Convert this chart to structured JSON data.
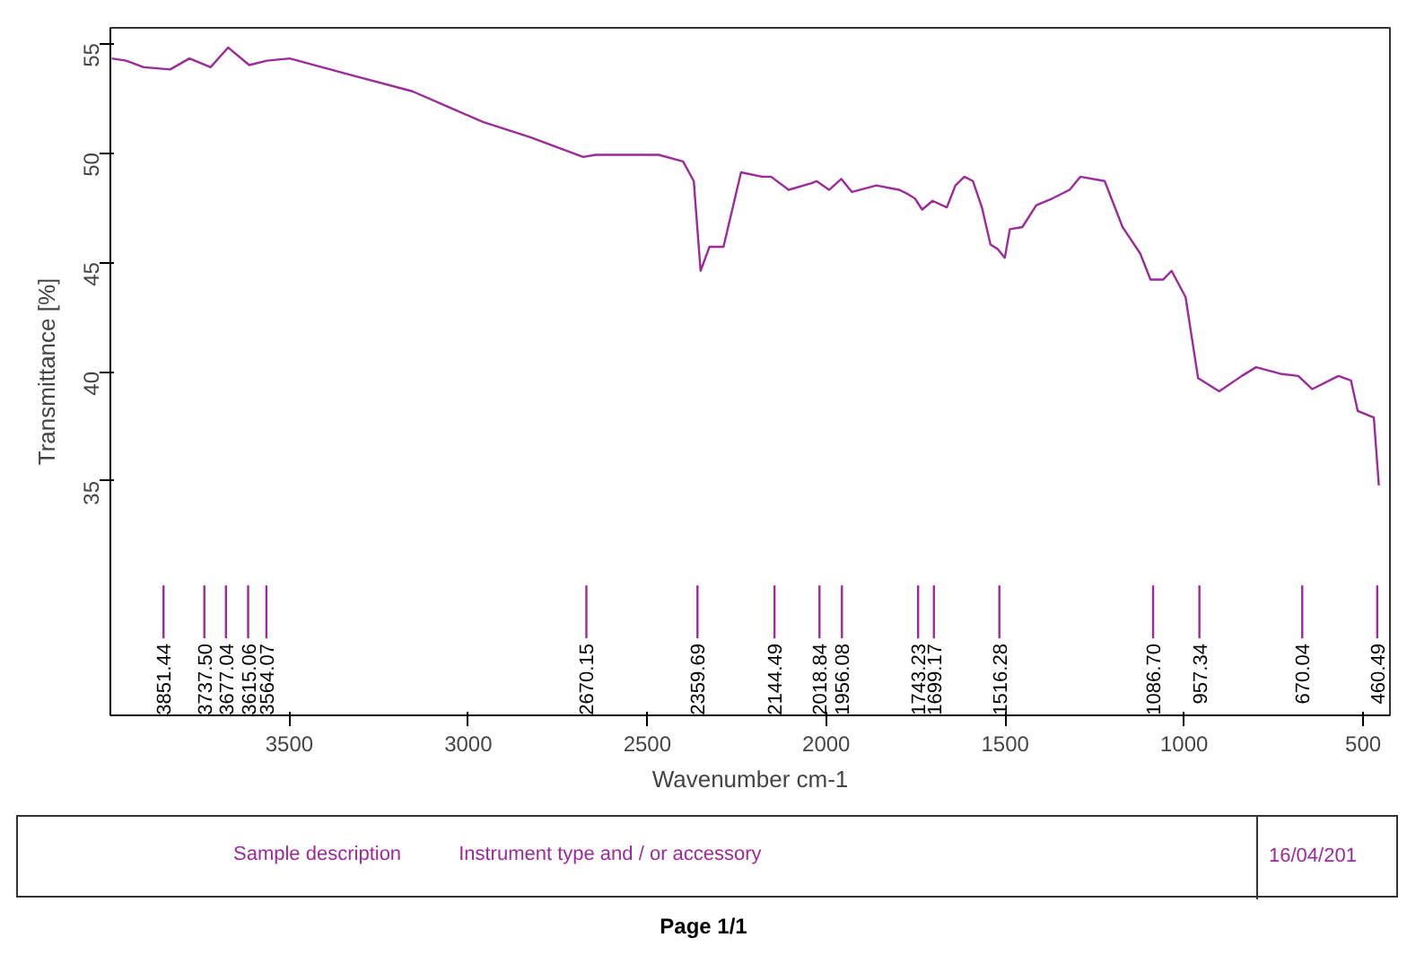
{
  "chart_data": {
    "type": "line",
    "xlabel": "Wavenumber cm-1",
    "ylabel": "Transmittance [%]",
    "xlim": [
      4000,
      425
    ],
    "ylim": [
      24.3,
      55.7
    ],
    "xticks": [
      3500,
      3000,
      2500,
      2000,
      1500,
      1000,
      500
    ],
    "yticks": [
      35,
      40,
      45,
      50,
      55
    ],
    "grid": false,
    "marker": "none",
    "line_style": "solid",
    "series": [
      {
        "color": "#9b2a9b",
        "x": [
          3996,
          3956,
          3907,
          3833,
          3779,
          3720,
          3671,
          3612,
          3563,
          3499,
          3318,
          3156,
          2959,
          2827,
          2679,
          2645,
          2468,
          2400,
          2370,
          2351,
          2326,
          2287,
          2238,
          2179,
          2154,
          2105,
          2041,
          2027,
          1992,
          1958,
          1928,
          1860,
          1796,
          1771,
          1752,
          1732,
          1703,
          1663,
          1639,
          1614,
          1590,
          1565,
          1541,
          1521,
          1501,
          1487,
          1452,
          1413,
          1369,
          1320,
          1290,
          1222,
          1172,
          1123,
          1094,
          1059,
          1035,
          996,
          961,
          902,
          839,
          799,
          731,
          681,
          642,
          569,
          534,
          515,
          470,
          456
        ],
        "values": [
          54.3,
          54.2,
          53.9,
          53.8,
          54.3,
          53.9,
          54.8,
          54.0,
          54.2,
          54.3,
          53.5,
          52.8,
          51.4,
          50.7,
          49.8,
          49.9,
          49.9,
          49.6,
          48.7,
          44.6,
          45.7,
          45.7,
          49.1,
          48.9,
          48.9,
          48.3,
          48.6,
          48.7,
          48.3,
          48.8,
          48.2,
          48.5,
          48.3,
          48.1,
          47.9,
          47.4,
          47.8,
          47.5,
          48.5,
          48.9,
          48.7,
          47.5,
          45.8,
          45.6,
          45.2,
          46.5,
          46.6,
          47.6,
          47.9,
          48.3,
          48.9,
          48.7,
          46.6,
          45.4,
          44.2,
          44.2,
          44.6,
          43.4,
          39.7,
          39.1,
          39.8,
          40.2,
          39.9,
          39.8,
          39.2,
          39.8,
          39.6,
          38.2,
          37.9,
          34.8
        ]
      }
    ],
    "ref_lines": [
      {
        "axis": "x",
        "value": 3851.44,
        "label": "3851.44"
      },
      {
        "axis": "x",
        "value": 3737.5,
        "label": "3737.50"
      },
      {
        "axis": "x",
        "value": 3677.04,
        "label": "3677.04"
      },
      {
        "axis": "x",
        "value": 3615.06,
        "label": "3615.06"
      },
      {
        "axis": "x",
        "value": 3564.07,
        "label": "3564.07"
      },
      {
        "axis": "x",
        "value": 2670.15,
        "label": "2670.15"
      },
      {
        "axis": "x",
        "value": 2359.69,
        "label": "2359.69"
      },
      {
        "axis": "x",
        "value": 2144.49,
        "label": "2144.49"
      },
      {
        "axis": "x",
        "value": 2018.84,
        "label": "2018.84"
      },
      {
        "axis": "x",
        "value": 1956.08,
        "label": "1956.08"
      },
      {
        "axis": "x",
        "value": 1743.23,
        "label": "1743.23"
      },
      {
        "axis": "x",
        "value": 1699.17,
        "label": "1699.17"
      },
      {
        "axis": "x",
        "value": 1516.28,
        "label": "1516.28"
      },
      {
        "axis": "x",
        "value": 1086.7,
        "label": "1086.70"
      },
      {
        "axis": "x",
        "value": 957.34,
        "label": "957.34"
      },
      {
        "axis": "x",
        "value": 670.04,
        "label": "670.04"
      },
      {
        "axis": "x",
        "value": 460.49,
        "label": "460.49"
      }
    ],
    "annotations": [
      "Sample description",
      "Instrument type and / or accessory",
      "16/04/201",
      "Page 1/1"
    ]
  }
}
